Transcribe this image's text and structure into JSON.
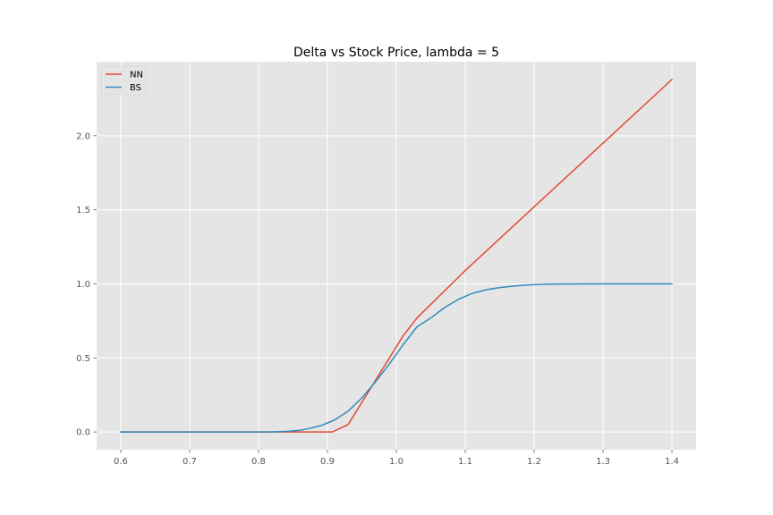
{
  "chart_data": {
    "type": "line",
    "title": "Delta vs Stock Price, lambda = 5",
    "xlabel": "",
    "ylabel": "",
    "xlim": [
      0.565,
      1.435
    ],
    "ylim": [
      -0.12,
      2.5
    ],
    "xticks": [
      "0.6",
      "0.7",
      "0.8",
      "0.9",
      "1.0",
      "1.1",
      "1.2",
      "1.3",
      "1.4"
    ],
    "yticks": [
      "0.0",
      "0.5",
      "1.0",
      "1.5",
      "2.0"
    ],
    "grid": true,
    "legend_position": "upper-left",
    "style": {
      "background": "#e5e5e5",
      "grid_color": "#ffffff",
      "tick_color": "#555555"
    },
    "series": [
      {
        "name": "NN",
        "color": "#e24a33",
        "x": [
          0.6,
          0.65,
          0.7,
          0.75,
          0.8,
          0.85,
          0.9,
          0.907,
          0.93,
          0.95,
          0.97,
          0.99,
          1.01,
          1.03,
          1.1,
          1.2,
          1.3,
          1.4
        ],
        "y": [
          0.0,
          0.0,
          0.0,
          0.0,
          0.0,
          0.0,
          0.0,
          0.0,
          0.05,
          0.2,
          0.35,
          0.5,
          0.65,
          0.77,
          1.09,
          1.52,
          1.95,
          2.38
        ]
      },
      {
        "name": "BS",
        "color": "#348abd",
        "x": [
          0.6,
          0.65,
          0.7,
          0.75,
          0.8,
          0.82,
          0.84,
          0.86,
          0.87,
          0.89,
          0.91,
          0.93,
          0.95,
          0.97,
          0.99,
          1.01,
          1.03,
          1.05,
          1.07,
          1.09,
          1.11,
          1.13,
          1.15,
          1.17,
          1.19,
          1.21,
          1.23,
          1.25,
          1.3,
          1.35,
          1.4
        ],
        "y": [
          0.0,
          0.0,
          0.0,
          0.0,
          0.0,
          0.001,
          0.004,
          0.011,
          0.02,
          0.042,
          0.08,
          0.14,
          0.23,
          0.34,
          0.46,
          0.59,
          0.71,
          0.77,
          0.84,
          0.895,
          0.935,
          0.96,
          0.975,
          0.985,
          0.992,
          0.996,
          0.998,
          0.999,
          1.0,
          1.0,
          1.0
        ]
      }
    ]
  }
}
